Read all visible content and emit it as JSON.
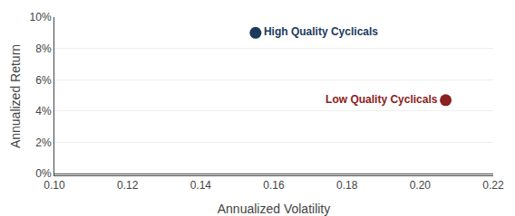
{
  "chart_data": {
    "type": "scatter",
    "xlabel": "Annualized Volatility",
    "ylabel": "Annualized Return",
    "series": [
      {
        "name": "High Quality Cyclicals",
        "color": "#1b3a5c",
        "x": [
          0.155
        ],
        "values": [
          0.09
        ]
      },
      {
        "name": "Low Quality Cyclicals",
        "color": "#8b2020",
        "x": [
          0.207
        ],
        "values": [
          0.047
        ]
      }
    ],
    "xlim": [
      0.1,
      0.22
    ],
    "ylim": [
      -0.001,
      0.1
    ],
    "xticks": [
      {
        "value": 0.1,
        "label": "0.10"
      },
      0.12,
      0.14,
      0.16,
      0.18,
      {
        "value": 0.2,
        "label": "0.20"
      },
      0.22
    ],
    "yticks": [
      {
        "value": 0.0,
        "label": "0%"
      },
      {
        "value": 0.02,
        "label": "2%"
      },
      {
        "value": 0.04,
        "label": "4%"
      },
      {
        "value": 0.06,
        "label": "6%"
      },
      {
        "value": 0.08,
        "label": "8%"
      },
      {
        "value": 0.1,
        "label": "10%"
      }
    ],
    "grid": "y"
  }
}
